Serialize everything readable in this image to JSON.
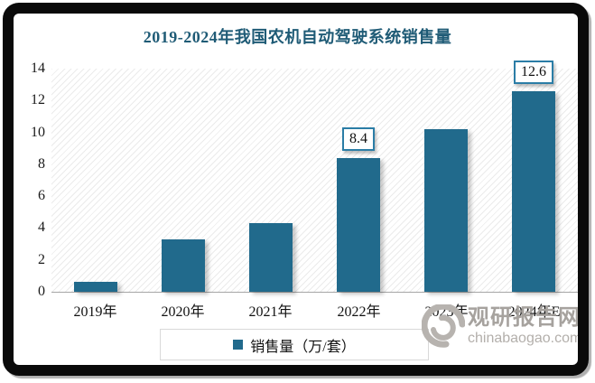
{
  "title": "2019-2024年我国农机自动驾驶系统销售量",
  "chart_data": {
    "type": "bar",
    "title": "2019-2024年我国农机自动驾驶系统销售量",
    "categories": [
      "2019年",
      "2020年",
      "2021年",
      "2022年",
      "2023年",
      "2024年E"
    ],
    "values": [
      0.6,
      3.3,
      4.3,
      8.4,
      10.2,
      12.6
    ],
    "data_labels": [
      null,
      null,
      null,
      "8.4",
      null,
      "12.6"
    ],
    "xlabel": "",
    "ylabel": "",
    "ylim": [
      0,
      14
    ],
    "yticks": [
      0,
      2,
      4,
      6,
      8,
      10,
      12,
      14
    ],
    "grid": false,
    "legend_position": "bottom",
    "legend": [
      "销售量（万/套）"
    ]
  },
  "legend": {
    "label": "销售量（万/套）"
  },
  "watermark": {
    "site_name": "观研报告网",
    "site_url": "chinabaogao.com"
  },
  "colors": {
    "bar": "#216a8c",
    "title": "#1f5b76",
    "label_box_border": "#2b7da6",
    "axis_line": "#a6a6a6",
    "legend_border": "#d9d9d9",
    "frame": "#0a0a0a",
    "hatch": "#ebebeb",
    "watermark": "#a6a29e"
  }
}
